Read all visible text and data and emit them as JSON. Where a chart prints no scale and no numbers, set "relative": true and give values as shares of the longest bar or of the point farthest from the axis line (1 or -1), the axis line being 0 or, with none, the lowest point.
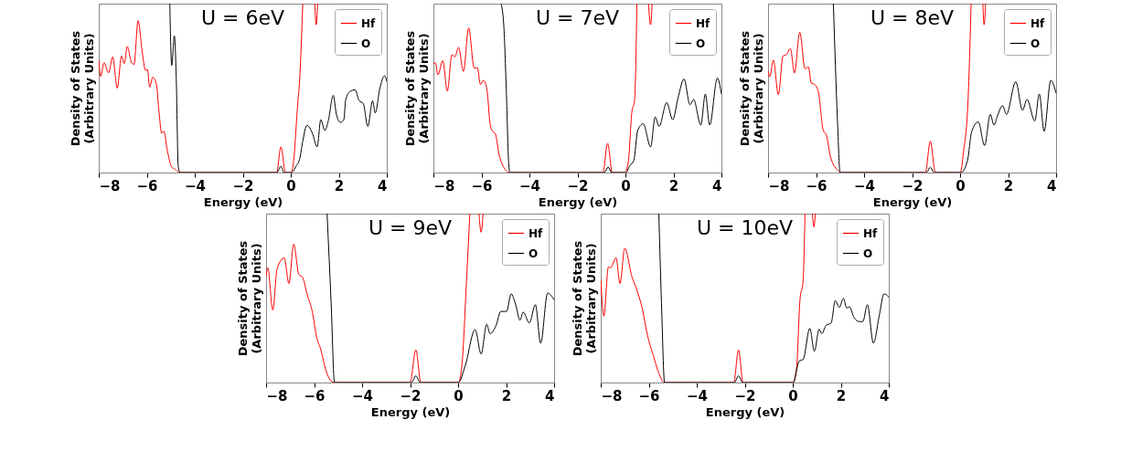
{
  "chart_data": [
    {
      "type": "line",
      "title": "U = 6eV",
      "xlabel": "Energy (eV)",
      "ylabel": "Density of States\n(Arbitrary Units)",
      "xlim": [
        -8,
        4
      ],
      "xticks": [
        -8,
        -6,
        -4,
        -2,
        0,
        2,
        4
      ],
      "relative": true,
      "legend": "top right",
      "series": [
        {
          "name": "Hf",
          "color": "#ff0000",
          "x": [
            -8,
            -7.92,
            -7.78,
            -7.59,
            -7.42,
            -7.23,
            -7.05,
            -6.94,
            -6.81,
            -6.64,
            -6.53,
            -6.36,
            -6.19,
            -6.05,
            -5.97,
            -5.88,
            -5.75,
            -5.6,
            -5.49,
            -5.38,
            -5.29,
            -5.15,
            -4.96,
            -4.82,
            -4.63,
            -0.59,
            -0.41,
            -0.22,
            0.02,
            0.11,
            0.28,
            0.37,
            0.5,
            0.75,
            1.0,
            1.06,
            1.12
          ],
          "values": [
            0.667,
            0.57,
            0.65,
            0.59,
            0.685,
            0.5,
            0.69,
            0.645,
            0.746,
            0.653,
            0.64,
            0.9,
            0.715,
            0.605,
            0.61,
            0.506,
            0.565,
            0.525,
            0.36,
            0.233,
            0.246,
            0.136,
            0.032,
            0.02,
            0,
            0,
            0.152,
            0,
            0,
            0.056,
            0.39,
            0.55,
            1,
            null,
            1,
            0.875,
            1
          ]
        },
        {
          "name": "O",
          "color": "#000000",
          "x": [
            -5.04,
            -4.96,
            -4.85,
            -4.77,
            -4.69,
            -4.61,
            -0.58,
            -0.41,
            -0.28,
            0.02,
            0.23,
            0.37,
            0.5,
            0.67,
            0.9,
            1.1,
            1.25,
            1.42,
            1.56,
            1.77,
            1.9,
            2.07,
            2.21,
            2.29,
            2.49,
            2.68,
            2.85,
            3.02,
            3.21,
            3.41,
            3.52,
            3.71,
            3.91,
            4.0
          ],
          "values": [
            1,
            0.634,
            0.81,
            0.554,
            0.04,
            0,
            0,
            0.037,
            0,
            0,
            0.04,
            0.08,
            0.185,
            0.28,
            0.233,
            0.152,
            0.313,
            0.249,
            0.305,
            0.457,
            0.345,
            0.297,
            0.313,
            0.433,
            0.482,
            0.49,
            0.425,
            0.409,
            0.273,
            0.425,
            0.353,
            0.498,
            0.573,
            0.538
          ]
        }
      ]
    },
    {
      "type": "line",
      "title": "U = 7eV",
      "xlabel": "Energy (eV)",
      "ylabel": "Density of States\n(Arbitrary Units)",
      "xlim": [
        -8,
        4
      ],
      "xticks": [
        -8,
        -6,
        -4,
        -2,
        0,
        2,
        4
      ],
      "relative": true,
      "legend": "top right",
      "series": [
        {
          "name": "Hf",
          "color": "#ff0000",
          "x": [
            -8,
            -7.92,
            -7.81,
            -7.61,
            -7.42,
            -7.23,
            -7.11,
            -6.95,
            -6.75,
            -6.53,
            -6.3,
            -6.17,
            -6.04,
            -5.91,
            -5.77,
            -5.63,
            -5.52,
            -5.43,
            -5.26,
            -5.09,
            -4.83,
            -0.94,
            -0.74,
            -0.55,
            -0.02,
            0.12,
            0.27,
            0.38,
            0.48,
            0.7,
            0.96,
            1.05,
            1.11
          ],
          "values": [
            0.642,
            0.65,
            0.578,
            0.663,
            0.482,
            0.698,
            0.685,
            0.741,
            0.599,
            0.856,
            0.618,
            0.621,
            0.522,
            0.546,
            0.49,
            0.281,
            0.241,
            0.233,
            0.104,
            0.037,
            0,
            0,
            0.173,
            0,
            0,
            0.064,
            0.361,
            0.425,
            1,
            null,
            1,
            0.875,
            1
          ]
        },
        {
          "name": "O",
          "color": "#000000",
          "x": [
            -5.18,
            -5.07,
            -4.96,
            -4.87,
            -4.82,
            -0.88,
            -0.72,
            -0.57,
            0.02,
            0.18,
            0.35,
            0.51,
            0.74,
            1.05,
            1.24,
            1.4,
            1.72,
            1.97,
            2.19,
            2.44,
            2.69,
            2.84,
            3.14,
            3.33,
            3.51,
            3.83,
            4.0
          ],
          "values": [
            1,
            0.875,
            0.473,
            0.072,
            0,
            0,
            0.032,
            0,
            0,
            0.04,
            0.072,
            0.249,
            0.289,
            0.152,
            0.329,
            0.273,
            0.414,
            0.313,
            0.441,
            0.554,
            0.401,
            0.433,
            0.281,
            0.465,
            0.281,
            0.559,
            0.465
          ]
        }
      ]
    },
    {
      "type": "line",
      "title": "U = 8eV",
      "xlabel": "Energy (eV)",
      "ylabel": "Density of States\n(Arbitrary Units)",
      "xlim": [
        -8,
        4
      ],
      "xticks": [
        -8,
        -6,
        -4,
        -2,
        0,
        2,
        4
      ],
      "relative": true,
      "legend": "top right",
      "series": [
        {
          "name": "Hf",
          "color": "#ff0000",
          "x": [
            -8,
            -7.93,
            -7.78,
            -7.57,
            -7.38,
            -7.24,
            -7.07,
            -6.9,
            -6.68,
            -6.46,
            -6.32,
            -6.2,
            -6.06,
            -5.9,
            -5.7,
            -5.58,
            -5.39,
            -5.06,
            -5.0,
            -1.45,
            -1.24,
            -1.03,
            0.01,
            0.14,
            0.33,
            0.46,
            0.7,
            0.95,
            1.0,
            1.06
          ],
          "values": [
            0.602,
            0.567,
            0.666,
            0.461,
            0.69,
            0.698,
            0.734,
            0.589,
            0.83,
            0.615,
            0.626,
            0.53,
            0.522,
            0.474,
            0.249,
            0.225,
            0.088,
            0.008,
            0,
            0,
            0.185,
            0,
            0,
            0.12,
            0.425,
            1,
            null,
            1,
            0.875,
            1
          ]
        },
        {
          "name": "O",
          "color": "#000000",
          "x": [
            -5.28,
            -5.11,
            -5.0,
            -1.4,
            -1.24,
            -1.09,
            0.03,
            0.31,
            0.48,
            0.76,
            1.02,
            1.26,
            1.41,
            1.54,
            1.77,
            1.93,
            2.32,
            2.6,
            2.79,
            3.11,
            3.3,
            3.5,
            3.78,
            4.0
          ],
          "values": [
            1,
            0.313,
            0,
            0,
            0.032,
            0,
            0,
            0.072,
            0.241,
            0.3,
            0.16,
            0.345,
            0.281,
            0.329,
            0.396,
            0.345,
            0.538,
            0.369,
            0.433,
            0.305,
            0.465,
            0.244,
            0.546,
            0.47
          ]
        }
      ]
    },
    {
      "type": "line",
      "title": "U = 9eV",
      "xlabel": "Energy (eV)",
      "ylabel": "Density of States\n(Arbitrary Units)",
      "xlim": [
        -8,
        4
      ],
      "xticks": [
        -8,
        -6,
        -4,
        -2,
        0,
        2,
        4
      ],
      "relative": true,
      "legend": "top right",
      "series": [
        {
          "name": "Hf",
          "color": "#ff0000",
          "x": [
            -8,
            -7.93,
            -7.72,
            -7.54,
            -7.24,
            -7.05,
            -6.85,
            -6.63,
            -6.49,
            -6.29,
            -6.07,
            -5.9,
            -5.73,
            -5.49,
            -5.18,
            -2.0,
            -1.76,
            -1.55,
            0.01,
            0.16,
            0.35,
            0.49,
            0.7,
            0.87,
            0.96,
            1.04
          ],
          "values": [
            0.626,
            0.679,
            0.43,
            0.674,
            0.738,
            0.586,
            0.819,
            0.637,
            0.626,
            0.522,
            0.417,
            0.273,
            0.2,
            0.064,
            0,
            0,
            0.193,
            0,
            0,
            0.104,
            0.602,
            1,
            null,
            1,
            0.89,
            1
          ]
        },
        {
          "name": "O",
          "color": "#000000",
          "x": [
            -5.46,
            -5.29,
            -5.15,
            -1.94,
            -1.76,
            -1.58,
            0.01,
            0.29,
            0.71,
            0.96,
            1.19,
            1.33,
            1.58,
            1.78,
            2.02,
            2.21,
            2.39,
            2.58,
            2.71,
            2.97,
            3.22,
            3.44,
            3.73,
            4.0
          ],
          "values": [
            1,
            0.473,
            0,
            0,
            0.04,
            0,
            0,
            0.096,
            0.313,
            0.169,
            0.345,
            0.289,
            0.337,
            0.421,
            0.421,
            0.525,
            0.465,
            0.369,
            0.417,
            0.353,
            0.461,
            0.233,
            0.53,
            0.49
          ]
        }
      ]
    },
    {
      "type": "line",
      "title": "U = 10eV",
      "xlabel": "Energy (eV)",
      "ylabel": "Density of States\n(Arbitrary Units)",
      "xlim": [
        -8,
        4
      ],
      "xticks": [
        -8,
        -6,
        -4,
        -2,
        0,
        2,
        4
      ],
      "relative": true,
      "legend": "top right",
      "series": [
        {
          "name": "Hf",
          "color": "#ff0000",
          "x": [
            -8,
            -7.87,
            -7.68,
            -7.59,
            -7.36,
            -7.2,
            -7.0,
            -6.7,
            -6.47,
            -6.25,
            -6.08,
            -5.81,
            -5.58,
            -5.36,
            -2.46,
            -2.26,
            -2.07,
            0.01,
            0.16,
            0.3,
            0.43,
            0.51,
            0.7,
            0.82,
            0.88,
            0.94
          ],
          "values": [
            0.61,
            0.393,
            0.685,
            0.679,
            0.738,
            0.586,
            0.795,
            0.626,
            0.538,
            0.425,
            0.297,
            0.16,
            0.056,
            0,
            0,
            0.193,
            0,
            0,
            0.088,
            0.49,
            0.602,
            1,
            null,
            1,
            0.92,
            1
          ]
        },
        {
          "name": "O",
          "color": "#000000",
          "x": [
            -5.58,
            -5.47,
            -5.34,
            -2.43,
            -2.26,
            -2.09,
            0.02,
            0.27,
            0.43,
            0.71,
            0.9,
            1.1,
            1.21,
            1.38,
            1.6,
            1.77,
            1.94,
            2.11,
            2.25,
            2.36,
            2.55,
            2.77,
            2.92,
            3.11,
            3.36,
            3.61,
            3.8,
            4.0
          ],
          "values": [
            1,
            0.473,
            0,
            0,
            0.04,
            0,
            0,
            0.128,
            0.136,
            0.321,
            0.185,
            0.316,
            0.289,
            0.337,
            0.353,
            0.485,
            0.445,
            0.498,
            0.441,
            0.449,
            0.385,
            0.361,
            0.361,
            0.461,
            0.233,
            0.401,
            0.525,
            0.506
          ]
        }
      ]
    }
  ]
}
